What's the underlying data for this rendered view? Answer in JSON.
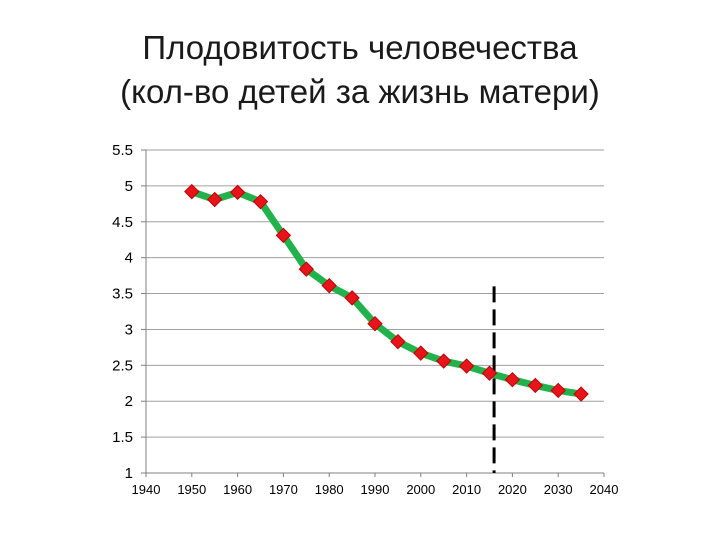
{
  "title": {
    "line1": "Плодовитость человечества",
    "line2": "(кол-во детей за жизнь матери)"
  },
  "chart_data": {
    "type": "line",
    "title": "Плодовитость человечества (кол-во детей за жизнь матери)",
    "xlabel": "",
    "ylabel": "",
    "xlim": [
      1940,
      2040
    ],
    "ylim": [
      1,
      5.5
    ],
    "x_ticks": [
      "1940",
      "1950",
      "1960",
      "1970",
      "1980",
      "1990",
      "2000",
      "2010",
      "2020",
      "2030",
      "2040"
    ],
    "y_ticks": [
      "5.5",
      "5",
      "4.5",
      "4",
      "3.5",
      "3",
      "2.5",
      "2",
      "1.5",
      "1"
    ],
    "grid": "horizontal",
    "series": [
      {
        "x": [
          1950,
          1955,
          1960,
          1965,
          1970,
          1975,
          1980,
          1985,
          1990,
          1995,
          2000,
          2005,
          2010,
          2015,
          2020,
          2025,
          2030,
          2035
        ],
        "y": [
          4.92,
          4.81,
          4.91,
          4.78,
          4.31,
          3.84,
          3.61,
          3.44,
          3.08,
          2.83,
          2.67,
          2.56,
          2.49,
          2.39,
          2.3,
          2.22,
          2.15,
          2.1
        ]
      }
    ],
    "vertical_marker_x": 2016,
    "colors": {
      "line": "#22b24c",
      "marker": "#e8141c",
      "marker_edge": "#c00000",
      "grid": "#a0a0a0",
      "axis": "#808080",
      "marker_line": "#000000"
    }
  }
}
